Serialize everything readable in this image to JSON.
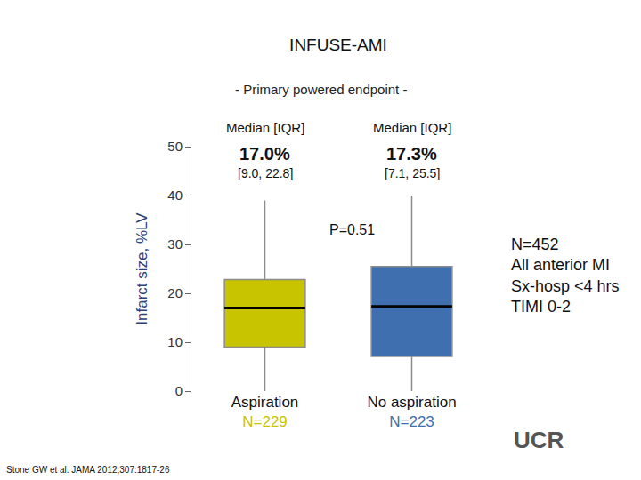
{
  "chart_data": {
    "type": "box",
    "title": "INFUSE-AMI",
    "subtitle": "- Primary powered endpoint -",
    "y_label": "Infarct size, %LV",
    "categories": [
      "Aspiration",
      "No aspiration"
    ],
    "n_labels": [
      "N=229",
      "N=223"
    ],
    "lowerfence": [
      0,
      0
    ],
    "q1": [
      9.0,
      7.1
    ],
    "median": [
      17.0,
      17.3
    ],
    "q3": [
      22.8,
      25.5
    ],
    "upperfence": [
      39,
      40
    ],
    "colors": [
      "#c8c400",
      "#3f6fae"
    ],
    "stat_header": "Median [IQR]",
    "median_labels": [
      "17.0%",
      "17.3%"
    ],
    "iqr_labels": [
      "[9.0, 22.8]",
      "[7.1, 25.5]"
    ],
    "p_value_label": "P=0.51",
    "side_notes": [
      "N=452",
      "All anterior MI",
      "Sx-hosp <4 hrs",
      "TIMI 0-2"
    ],
    "citation": "Stone GW et al. JAMA 2012;307:1817-26",
    "logo": "UCR",
    "ylim": [
      0,
      50
    ],
    "yticks": [
      0,
      10,
      20,
      30,
      40,
      50
    ],
    "grid": false
  }
}
